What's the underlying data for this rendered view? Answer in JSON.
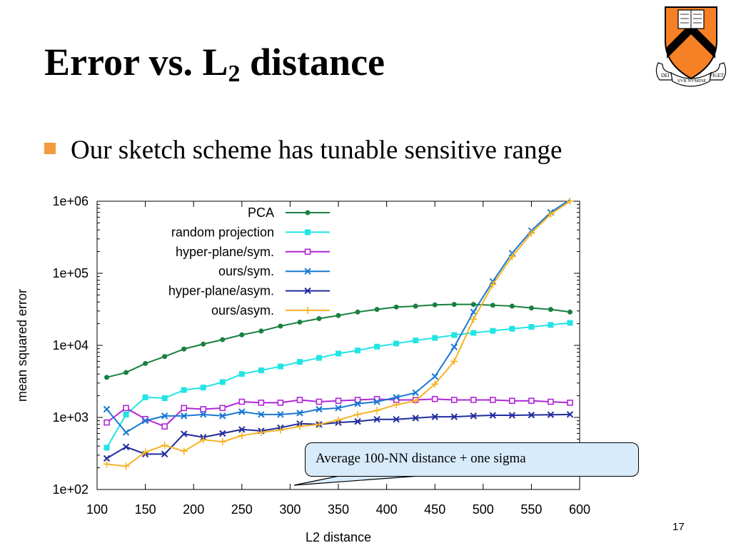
{
  "slide": {
    "title_main": "Error vs. L",
    "title_sub": "2",
    "title_end": " distance",
    "bullet_text": "Our sketch scheme has tunable sensitive range",
    "page_number": "17"
  },
  "colors": {
    "bullet": "#f39a3c",
    "callout_bg": "#d8ebfb",
    "crest_orange": "#f58025",
    "crest_black": "#000000"
  },
  "logo": {
    "icon": "princeton-shield-icon",
    "motto_left": "DEI",
    "motto_center": "SVB NVMINE",
    "motto_right": "VIGET"
  },
  "annotation": {
    "text": "Average 100-NN distance + one sigma"
  },
  "chart_data": {
    "type": "line",
    "xlabel": "L2 distance",
    "ylabel": "mean squared error",
    "xlim": [
      100,
      600
    ],
    "ylim": [
      100,
      1000000
    ],
    "yscale": "log",
    "x_ticks": [
      100,
      150,
      200,
      250,
      300,
      350,
      400,
      450,
      500,
      550,
      600
    ],
    "y_ticks": [
      100,
      1000,
      10000,
      100000,
      1000000
    ],
    "y_tick_labels": [
      "1e+02",
      "1e+03",
      "1e+04",
      "1e+05",
      "1e+06"
    ],
    "grid": false,
    "legend_position": "top-right",
    "x": [
      110,
      130,
      150,
      170,
      190,
      210,
      230,
      250,
      270,
      290,
      310,
      330,
      350,
      370,
      390,
      410,
      430,
      450,
      470,
      490,
      510,
      530,
      550,
      570,
      590
    ],
    "series": [
      {
        "name": "PCA",
        "color": "#1a8040",
        "marker": "dot",
        "values": [
          3600,
          4200,
          5600,
          7000,
          8900,
          10400,
          12000,
          14000,
          15800,
          18500,
          21000,
          23500,
          26000,
          29000,
          31500,
          34000,
          35000,
          36500,
          37000,
          37000,
          36000,
          35000,
          33000,
          31500,
          29000
        ]
      },
      {
        "name": "random projection",
        "color": "#22e4e4",
        "marker": "filled-square",
        "values": [
          380,
          1100,
          1900,
          1850,
          2400,
          2600,
          3100,
          4000,
          4500,
          5100,
          5900,
          6700,
          7700,
          8500,
          9600,
          10600,
          11700,
          12700,
          13900,
          14900,
          15900,
          17000,
          18000,
          19200,
          20500
        ]
      },
      {
        "name": "hyper-plane/sym.",
        "color": "#b026d6",
        "marker": "open-square",
        "values": [
          850,
          1350,
          950,
          750,
          1350,
          1300,
          1350,
          1650,
          1600,
          1600,
          1750,
          1650,
          1700,
          1750,
          1800,
          1750,
          1750,
          1800,
          1750,
          1750,
          1750,
          1700,
          1700,
          1650,
          1600
        ]
      },
      {
        "name": "ours/sym.",
        "color": "#1878d2",
        "marker": "x",
        "values": [
          1300,
          620,
          900,
          1050,
          1050,
          1100,
          1050,
          1200,
          1100,
          1100,
          1150,
          1300,
          1350,
          1550,
          1650,
          1900,
          2200,
          3700,
          9500,
          29000,
          77000,
          190000,
          390000,
          700000,
          1050000
        ]
      },
      {
        "name": "hyper-plane/asym.",
        "color": "#202c9c",
        "marker": "x",
        "values": [
          270,
          390,
          310,
          310,
          590,
          530,
          600,
          680,
          650,
          720,
          820,
          800,
          850,
          880,
          940,
          940,
          980,
          1020,
          1020,
          1050,
          1070,
          1070,
          1080,
          1090,
          1100
        ]
      },
      {
        "name": "ours/asym.",
        "color": "#f5b325",
        "marker": "plus",
        "values": [
          225,
          210,
          330,
          410,
          340,
          490,
          460,
          560,
          620,
          670,
          750,
          800,
          920,
          1100,
          1250,
          1500,
          1700,
          2900,
          6000,
          23000,
          70000,
          170000,
          360000,
          660000,
          1000000
        ]
      }
    ]
  }
}
